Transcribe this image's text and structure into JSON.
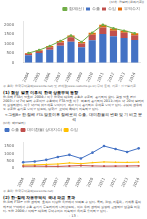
{
  "chart_data": [
    {
      "type": "bar",
      "subtitle": "(단위 : 천달러(원화기준))",
      "categories": [
        "2004",
        "2005",
        "2006",
        "2007",
        "2008",
        "2009",
        "2010",
        "2011",
        "2012",
        "2013",
        "2014"
      ],
      "series": [
        {
          "name": "수출",
          "color": "#4472C4",
          "values": [
            400,
            520,
            680,
            900,
            1100,
            820,
            1180,
            1520,
            1400,
            1310,
            1200
          ]
        },
        {
          "name": "수입",
          "color": "#C0504D",
          "values": [
            80,
            100,
            140,
            170,
            240,
            190,
            290,
            340,
            290,
            270,
            250
          ]
        },
        {
          "name": "무역수지",
          "color": "#E36C09",
          "values": [
            30,
            45,
            60,
            75,
            95,
            85,
            110,
            140,
            120,
            110,
            100
          ]
        },
        {
          "name": "합계(선)",
          "type": "line",
          "color": "#70AD47",
          "marker": "circle",
          "values": [
            510,
            665,
            880,
            1145,
            1435,
            1095,
            1580,
            2000,
            1810,
            1690,
            1550
          ]
        }
      ],
      "stacked": true,
      "ylim": [
        0,
        2200
      ],
      "yticks": [
        0,
        500,
        1000,
        1500,
        2000
      ],
      "grid": false,
      "legend": "upper right",
      "annotations": [
        "주 출처: 한국무역협회(www.kita.net) 및 관세청(www.customs.go.kr) 무역 통계, 기준 : 신고일 기준"
      ]
    },
    {
      "type": "line",
      "title": "<그림8> 한-칠레 FTA 발효이후 칠레로의 수출, 대미환율의 변화 및 기 비교 분석",
      "subtitle": "(단위: 백만달러)",
      "categories": [
        "2004",
        "2005",
        "2006",
        "2007",
        "2008",
        "2009",
        "2010",
        "2011",
        "2012",
        "2013",
        "2014"
      ],
      "series": [
        {
          "name": "수출",
          "color": "#4472C4",
          "marker": "circle",
          "values": [
            400,
            450,
            560,
            760,
            910,
            660,
            1060,
            1520,
            1310,
            1110,
            1360
          ]
        },
        {
          "name": "대미환율(상대지수)",
          "color": "#C0504D",
          "marker": "square",
          "values": [
            120,
            125,
            115,
            105,
            135,
            165,
            140,
            125,
            130,
            135,
            148
          ]
        },
        {
          "name": "수입",
          "color": "#FFC000",
          "marker": "triangle",
          "values": [
            200,
            215,
            245,
            275,
            345,
            295,
            365,
            415,
            395,
            385,
            405
          ]
        }
      ],
      "ylim": [
        0,
        1800
      ],
      "yticks": [
        0,
        500,
        1000,
        1500
      ],
      "grid": false,
      "legend": "upper left",
      "annotations": [
        "주 출처: 한국무역협회(www.kita.net)"
      ]
    }
  ],
  "sections": [
    {
      "title": "(1) 협정 발효 이후의 한국 상품무역 동향",
      "body": "한-칠레 FTA가 발효된 2004년 이후 한국의 대칠레 수출은 꾸준히 증가하여 왔다. 협정 발효 전인 2003년 약 7억 달러 수준이던 수출액이 FTA 발효 이후 빠르게 증가하여 2011년에는 약 20억 달러까지 성장하였다. 이후 약간의 감소세를 보이다가 최근 다시 증가하는 추세를 보이고 있다. 수입의 경우에도 꾸준한 증가를 보이고 있으며, 양국간 교역의 확대가 지속되고 있다."
    },
    {
      "title": "(2) 한-칠레 자유무역의 국내 파급 효과",
      "body": "한-칠레 FTA로 인한 경제적 효과는 다양한 측면에서 살펴볼 수 있다. 특히, 철강, 자동차, 기계류 등의 제조업 분야에서 수출 증가가 두드러지게 나타났으며, 이는 우리 경제의 성장에 긍정적인 영향을 미쳤다. 또한 2004년 이래로 대칠레 무역수지는 지속적인 흑자를 유지하고 있다."
    }
  ],
  "page_number": "- 13 -"
}
